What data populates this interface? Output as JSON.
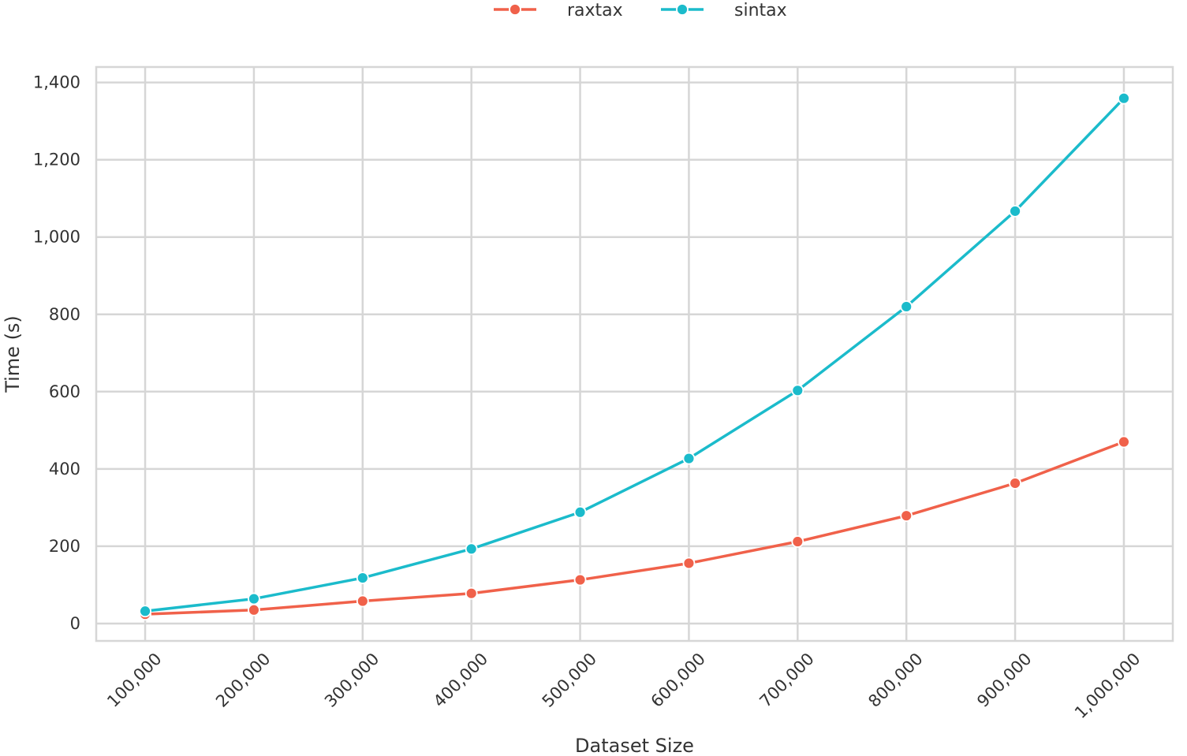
{
  "chart_data": {
    "type": "line",
    "title": "",
    "xlabel": "Dataset Size",
    "ylabel": "Time (s)",
    "x": [
      100000,
      200000,
      300000,
      400000,
      500000,
      600000,
      700000,
      800000,
      900000,
      1000000
    ],
    "x_tick_labels": [
      "100,000",
      "200,000",
      "300,000",
      "400,000",
      "500,000",
      "600,000",
      "700,000",
      "800,000",
      "900,000",
      "1,000,000"
    ],
    "y_ticks": [
      0,
      200,
      400,
      600,
      800,
      1000,
      1200,
      1400
    ],
    "y_tick_labels": [
      "0",
      "200",
      "400",
      "600",
      "800",
      "1,000",
      "1,200",
      "1,400"
    ],
    "ylim": [
      -45,
      1440
    ],
    "xlim": [
      55000,
      1045000
    ],
    "grid": true,
    "legend_position": "top-center",
    "series": [
      {
        "name": "raxtax",
        "color": "#F0614A",
        "marker": "circle",
        "values": [
          24,
          35,
          58,
          78,
          113,
          156,
          212,
          279,
          363,
          470
        ]
      },
      {
        "name": "sintax",
        "color": "#1BBBCB",
        "marker": "circle",
        "values": [
          32,
          64,
          118,
          193,
          288,
          427,
          603,
          820,
          1067,
          1359
        ]
      }
    ]
  }
}
